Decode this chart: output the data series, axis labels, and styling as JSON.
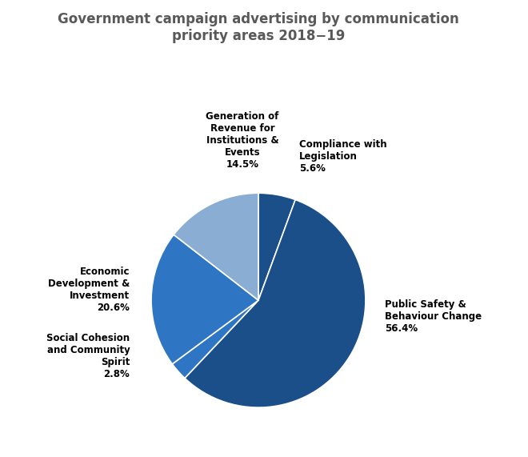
{
  "title": "Government campaign advertising by communication\npriority areas 2018−19",
  "slices": [
    {
      "label": "Compliance with\nLegislation\n5.6%",
      "value": 5.6,
      "color": "#1a4f8a"
    },
    {
      "label": "Public Safety &\nBehaviour Change\n56.4%",
      "value": 56.4,
      "color": "#1a4f8a"
    },
    {
      "label": "Social Cohesion\nand Community\nSpirit\n2.8%",
      "value": 2.8,
      "color": "#2e75c3"
    },
    {
      "label": "Economic\nDevelopment &\nInvestment\n20.6%",
      "value": 20.6,
      "color": "#2e75c3"
    },
    {
      "label": "Generation of\nRevenue for\nInstitutions &\nEvents\n14.5%",
      "value": 14.5,
      "color": "#8aadd4"
    }
  ],
  "wedge_edge_color": "white",
  "title_color": "#595959",
  "title_fontsize": 12,
  "label_fontsize": 8.5,
  "background_color": "#ffffff",
  "startangle": 90
}
